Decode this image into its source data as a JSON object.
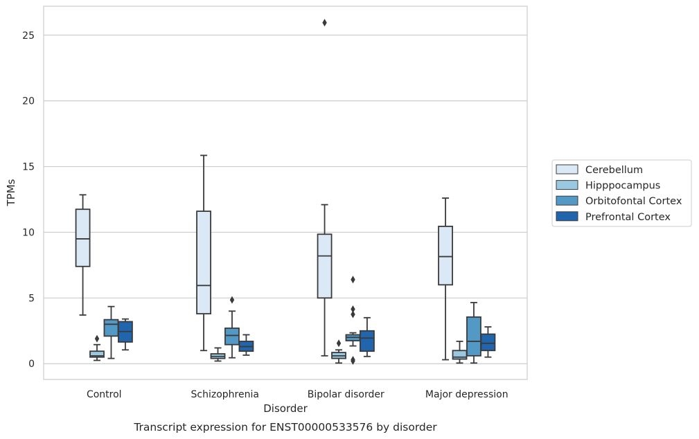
{
  "caption": "Transcript expression for ENST00000533576 by disorder",
  "chart_data": {
    "type": "box",
    "title": "",
    "xlabel": "Disorder",
    "ylabel": "TPMs",
    "ylim": [
      -1.2,
      27.2
    ],
    "yticks": [
      0,
      5,
      10,
      15,
      20,
      25
    ],
    "grid": "horizontal",
    "legend_position": "right",
    "categories": [
      "Control",
      "Schizophrenia",
      "Bipolar disorder",
      "Major depression"
    ],
    "series": [
      {
        "name": "Cerebellum",
        "color": "#dbe9f6",
        "boxes": [
          {
            "whislo": 3.7,
            "q1": 7.4,
            "med": 9.5,
            "q3": 11.75,
            "whishi": 12.85,
            "fliers": []
          },
          {
            "whislo": 1.0,
            "q1": 3.8,
            "med": 5.95,
            "q3": 11.6,
            "whishi": 15.85,
            "fliers": []
          },
          {
            "whislo": 0.6,
            "q1": 5.0,
            "med": 8.2,
            "q3": 9.85,
            "whishi": 12.1,
            "fliers": [
              25.95
            ]
          },
          {
            "whislo": 0.3,
            "q1": 6.0,
            "med": 8.15,
            "q3": 10.45,
            "whishi": 12.6,
            "fliers": []
          }
        ]
      },
      {
        "name": "Hipppocampus",
        "color": "#9ac8e0",
        "boxes": [
          {
            "whislo": 0.25,
            "q1": 0.5,
            "med": 0.6,
            "q3": 0.95,
            "whishi": 1.45,
            "fliers": [
              1.9
            ]
          },
          {
            "whislo": 0.2,
            "q1": 0.4,
            "med": 0.55,
            "q3": 0.75,
            "whishi": 1.2,
            "fliers": []
          },
          {
            "whislo": 0.05,
            "q1": 0.4,
            "med": 0.6,
            "q3": 0.85,
            "whishi": 1.05,
            "fliers": [
              1.55
            ]
          },
          {
            "whislo": 0.05,
            "q1": 0.35,
            "med": 0.5,
            "q3": 1.0,
            "whishi": 1.7,
            "fliers": []
          }
        ]
      },
      {
        "name": "Orbitofontal Cortex",
        "color": "#5399c6",
        "boxes": [
          {
            "whislo": 0.4,
            "q1": 2.1,
            "med": 3.0,
            "q3": 3.35,
            "whishi": 4.35,
            "fliers": []
          },
          {
            "whislo": 0.45,
            "q1": 1.45,
            "med": 2.15,
            "q3": 2.7,
            "whishi": 4.0,
            "fliers": [
              4.85
            ]
          },
          {
            "whislo": 1.35,
            "q1": 1.75,
            "med": 2.0,
            "q3": 2.2,
            "whishi": 2.35,
            "fliers": [
              0.2,
              0.3,
              3.75,
              4.15,
              6.4
            ]
          },
          {
            "whislo": 0.05,
            "q1": 0.6,
            "med": 1.7,
            "q3": 3.55,
            "whishi": 4.65,
            "fliers": []
          }
        ]
      },
      {
        "name": "Prefrontal Cortex",
        "color": "#2166ac",
        "boxes": [
          {
            "whislo": 1.05,
            "q1": 1.65,
            "med": 2.45,
            "q3": 3.2,
            "whishi": 3.4,
            "fliers": []
          },
          {
            "whislo": 0.65,
            "q1": 0.95,
            "med": 1.3,
            "q3": 1.7,
            "whishi": 2.2,
            "fliers": []
          },
          {
            "whislo": 0.55,
            "q1": 0.95,
            "med": 1.95,
            "q3": 2.5,
            "whishi": 3.5,
            "fliers": []
          },
          {
            "whislo": 0.5,
            "q1": 1.0,
            "med": 1.55,
            "q3": 2.25,
            "whishi": 2.8,
            "fliers": []
          }
        ]
      }
    ]
  }
}
